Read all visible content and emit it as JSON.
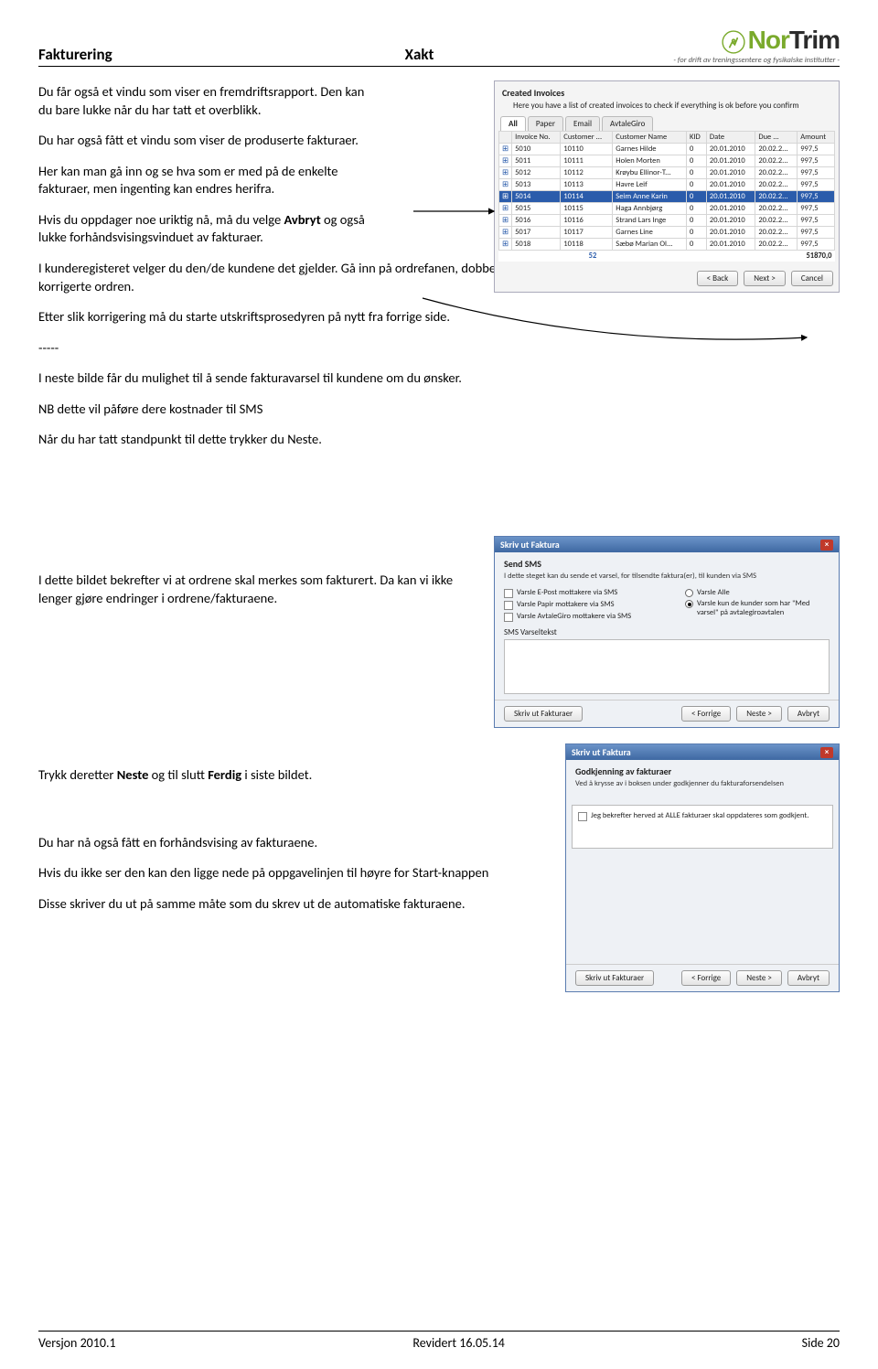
{
  "header": {
    "left": "Fakturering",
    "center": "Xakt",
    "logo_line1_a": "Nor",
    "logo_line1_b": "Trim",
    "logo_sub": "- for drift av treningssentere og fysikalske institutter -"
  },
  "body": {
    "p1a": "Du får også et vindu som viser en fremdriftsrapport.",
    "p1b": "Den kan du bare lukke når du har tatt et overblikk.",
    "p2": "Du har også fått et vindu som viser de produserte fakturaer.",
    "p3": "Her kan man gå inn og se hva som er med på de enkelte fakturaer, men ingenting kan endres herifra.",
    "p4a": "Hvis du oppdager noe uriktig nå, må du velge ",
    "p4b": "Avbryt",
    "p4c": " og  også lukke forhåndsvisingsvinduet av fakturaer.",
    "p5": "I kunderegisteret velger du den/de kundene det gjelder. Gå inn på ordrefanen, dobbelklikk på ordren det gjelder, korriger ordren og lagre den korrigerte ordren.",
    "p6": "Etter slik korrigering må du starte utskriftsprosedyren på nytt fra forrige side.",
    "dashes": "-----",
    "p7": "I neste bilde får du mulighet til å sende fakturavarsel til kundene om du ønsker.",
    "p8": "NB dette vil påføre dere kostnader til SMS",
    "p9": "Når du har tatt standpunkt til dette trykker du Neste.",
    "p10": "I dette bildet bekrefter vi at ordrene skal merkes som fakturert. Da kan vi ikke lenger gjøre endringer i ordrene/fakturaene.",
    "p11a": "Trykk deretter ",
    "p11b": "Neste",
    "p11c": " og til slutt ",
    "p11d": "Ferdig",
    "p11e": " i siste bildet.",
    "p12": "Du har nå også fått en forhåndsvising av fakturaene.",
    "p13": "Hvis du ikke ser den kan den ligge nede på oppgavelinjen til høyre for Start-knappen",
    "p14": "Disse skriver du ut på samme måte som du skrev ut de automatiske fakturaene."
  },
  "shot1": {
    "title": "Created Invoices",
    "sub": "Here you have a list of created invoices to check if everything is ok before you confirm",
    "tabs": [
      "All",
      "Paper",
      "Email",
      "AvtaleGiro"
    ],
    "cols": [
      "",
      "Invoice No.",
      "Customer ...",
      "Customer Name",
      "KID",
      "Date",
      "Due ...",
      "Amount"
    ],
    "rows": [
      [
        "⊞",
        "5010",
        "10110",
        "Garnes Hilde",
        "0",
        "20.01.2010",
        "20.02.2...",
        "997,5"
      ],
      [
        "⊞",
        "5011",
        "10111",
        "Holen Morten",
        "0",
        "20.01.2010",
        "20.02.2...",
        "997,5"
      ],
      [
        "⊞",
        "5012",
        "10112",
        "Krøybu Ellinor-T...",
        "0",
        "20.01.2010",
        "20.02.2...",
        "997,5"
      ],
      [
        "⊞",
        "5013",
        "10113",
        "Havre Leif",
        "0",
        "20.01.2010",
        "20.02.2...",
        "997,5"
      ],
      [
        "⊞",
        "5014",
        "10114",
        "Seim Anne Karin",
        "0",
        "20.01.2010",
        "20.02.2...",
        "997,5"
      ],
      [
        "⊞",
        "5015",
        "10115",
        "Haga Annbjørg",
        "0",
        "20.01.2010",
        "20.02.2...",
        "997,5"
      ],
      [
        "⊞",
        "5016",
        "10116",
        "Strand Lars Inge",
        "0",
        "20.01.2010",
        "20.02.2...",
        "997,5"
      ],
      [
        "⊞",
        "5017",
        "10117",
        "Garnes Line",
        "0",
        "20.01.2010",
        "20.02.2...",
        "997,5"
      ],
      [
        "⊞",
        "5018",
        "10118",
        "Sæbø Marian Ol...",
        "0",
        "20.01.2010",
        "20.02.2...",
        "997,5"
      ]
    ],
    "selected_index": 4,
    "foot_count": "52",
    "foot_sum": "51870,0",
    "btn_back": "< Back",
    "btn_next": "Next >",
    "btn_cancel": "Cancel"
  },
  "shot2": {
    "title": "Skriv ut Faktura",
    "section": "Send SMS",
    "desc": "I dette steget kan du sende et varsel, for tilsendte faktura(er), til kunden via SMS",
    "chk1": "Varsle E-Post mottakere via SMS",
    "chk2": "Varsle Papir mottakere via SMS",
    "chk3": "Varsle AvtaleGiro mottakere via SMS",
    "r1": "Varsle Alle",
    "r2": "Varsle kun de kunder som har \"Med varsel\" på avtalegiroavtalen",
    "txtlabel": "SMS Varseltekst",
    "btn_print": "Skriv ut Fakturaer",
    "btn_back": "< Forrige",
    "btn_next": "Neste >",
    "btn_cancel": "Avbryt"
  },
  "shot3": {
    "title": "Skriv ut Faktura",
    "section": "Godkjenning av fakturaer",
    "desc": "Ved å krysse av i boksen under godkjenner du fakturaforsendelsen",
    "chk": "Jeg bekrefter herved at ALLE fakturaer skal oppdateres som godkjent.",
    "btn_print": "Skriv ut Fakturaer",
    "btn_back": "< Forrige",
    "btn_next": "Neste >",
    "btn_cancel": "Avbryt"
  },
  "footer": {
    "left": "Versjon 2010.1",
    "center": "Revidert 16.05.14",
    "right": "Side 20"
  }
}
